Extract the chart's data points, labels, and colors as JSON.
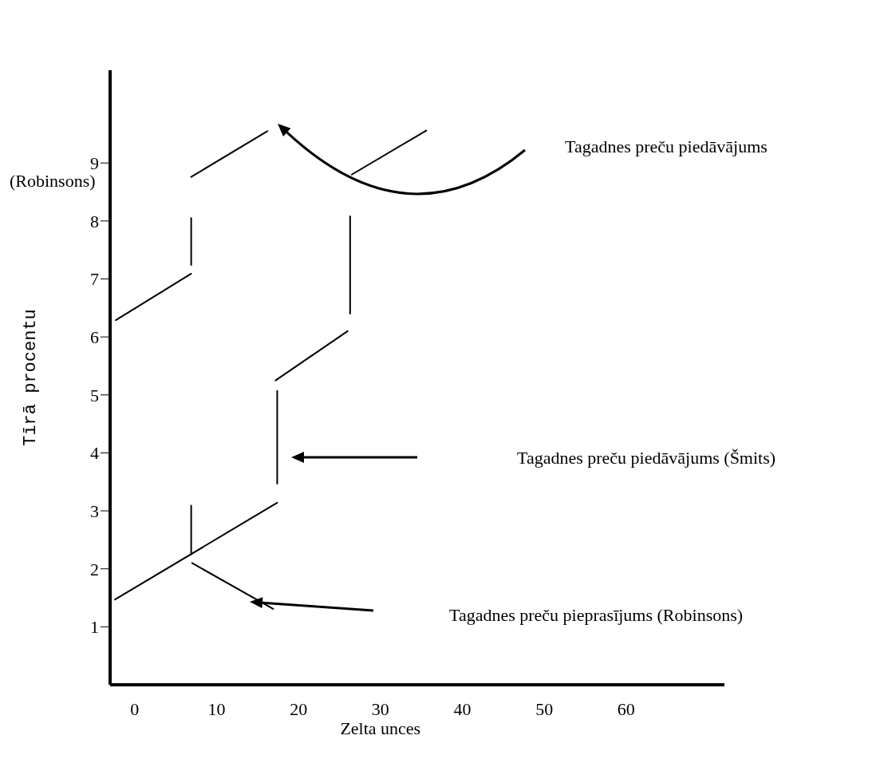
{
  "chart_data": {
    "type": "line",
    "xlabel": "Zelta unces",
    "ylabel": "Tīrā procentu",
    "xlim": [
      -3,
      72
    ],
    "ylim": [
      0,
      10.6
    ],
    "xticks": [
      0,
      10,
      20,
      30,
      40,
      50,
      60
    ],
    "yticks": [
      1,
      2,
      3,
      4,
      5,
      6,
      7,
      8,
      9
    ],
    "grid": false,
    "marker": "none",
    "line_style": "solid",
    "series": [
      {
        "color": "#000000",
        "x": [
          -2.4,
          17.4
        ],
        "values": [
          1.47,
          3.14
        ]
      },
      {
        "color": "#000000",
        "x": [
          6.9,
          6.9
        ],
        "values": [
          3.09,
          2.25
        ]
      },
      {
        "color": "#000000",
        "x": [
          7,
          16.9
        ],
        "values": [
          2.1,
          1.31
        ]
      },
      {
        "color": "#000000",
        "x": [
          17.4,
          17.4
        ],
        "values": [
          5.07,
          3.47
        ]
      },
      {
        "color": "#000000",
        "x": [
          17.2,
          26
        ],
        "values": [
          5.25,
          6.1
        ]
      },
      {
        "color": "#000000",
        "x": [
          26.3,
          26.3
        ],
        "values": [
          8.08,
          6.4
        ]
      },
      {
        "color": "#000000",
        "x": [
          -2.3,
          6.9
        ],
        "values": [
          6.29,
          7.09
        ]
      },
      {
        "color": "#000000",
        "x": [
          6.9,
          6.9
        ],
        "values": [
          8.05,
          7.24
        ]
      },
      {
        "color": "#000000",
        "x": [
          6.9,
          16.2
        ],
        "values": [
          8.76,
          9.55
        ]
      },
      {
        "color": "#000000",
        "x": [
          26.5,
          35.6
        ],
        "values": [
          8.8,
          9.56
        ]
      }
    ],
    "annotations": [
      "Tagadnes preču piedāvājums",
      "Tagadnes preču piedāvājums (Šmits)",
      "Tagadnes preču pieprasījums (Robinsons)",
      "(Robinsons)"
    ]
  }
}
